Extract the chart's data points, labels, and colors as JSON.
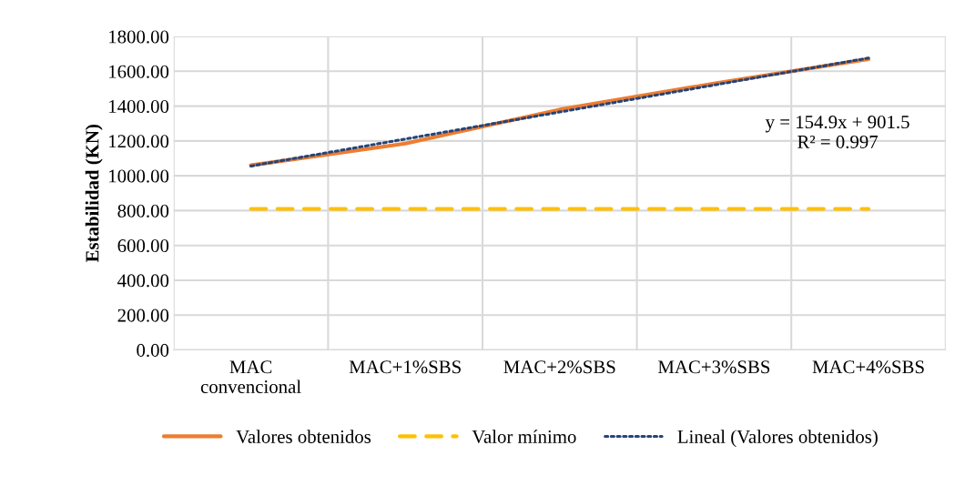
{
  "chart_data": {
    "type": "line",
    "ylabel": "Estabilidad (KN)",
    "categories": [
      "MAC\nconvencional",
      "MAC+1%SBS",
      "MAC+2%SBS",
      "MAC+3%SBS",
      "MAC+4%SBS"
    ],
    "series": [
      {
        "name": "Valores obtenidos",
        "color": "#ed7d31",
        "values": [
          1060,
          1185,
          1380,
          1530,
          1670
        ],
        "line_style": "solid"
      },
      {
        "name": "Valor mínimo",
        "color": "#ffc000",
        "values": [
          810,
          810,
          810,
          810,
          810
        ],
        "line_style": "dashed"
      },
      {
        "name": "Lineal (Valores obtenidos)",
        "color": "#264478",
        "values": [
          1056,
          1211,
          1366,
          1521,
          1676
        ],
        "line_style": "dotted"
      }
    ],
    "ylim": [
      0,
      1800
    ],
    "yticks": [
      {
        "value": 0,
        "label": "0.00"
      },
      {
        "value": 200,
        "label": "200.00"
      },
      {
        "value": 400,
        "label": "400.00"
      },
      {
        "value": 600,
        "label": "600.00"
      },
      {
        "value": 800,
        "label": "800.00"
      },
      {
        "value": 1000,
        "label": "1000.00"
      },
      {
        "value": 1200,
        "label": "1200.00"
      },
      {
        "value": 1400,
        "label": "1400.00"
      },
      {
        "value": 1600,
        "label": "1600.00"
      },
      {
        "value": 1800,
        "label": "1800.00"
      }
    ],
    "annotations": [
      "y = 154.9x + 901.5\nR² = 0.997"
    ],
    "grid": true,
    "legend": "bottom",
    "marker": "none"
  }
}
